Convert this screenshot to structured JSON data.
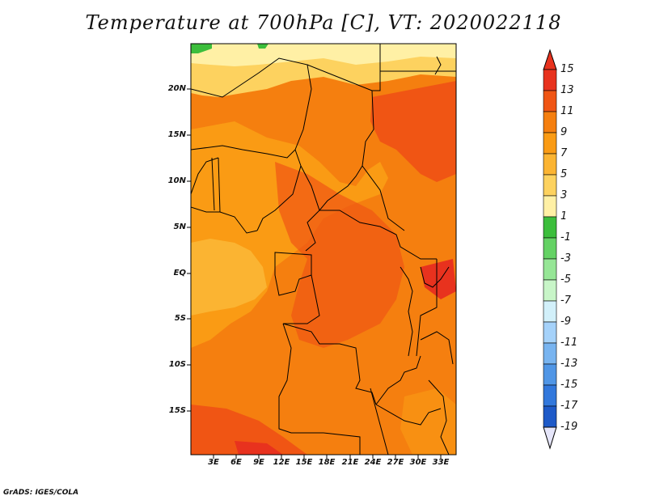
{
  "title": "Temperature at 700hPa [C], VT: 2020022118",
  "credit": "GrADS: IGES/COLA",
  "map": {
    "lat_ticks": [
      "20N",
      "15N",
      "10N",
      "5N",
      "EQ",
      "5S",
      "10S",
      "15S"
    ],
    "lon_ticks": [
      "3E",
      "6E",
      "9E",
      "12E",
      "15E",
      "18E",
      "21E",
      "24E",
      "27E",
      "30E",
      "33E"
    ]
  },
  "colorbar": {
    "labels": [
      "15",
      "13",
      "11",
      "9",
      "7",
      "5",
      "3",
      "1",
      "-1",
      "-3",
      "-5",
      "-7",
      "-9",
      "-11",
      "-13",
      "-15",
      "-17",
      "-19"
    ],
    "colors": [
      "#e8321e",
      "#f05514",
      "#f57f0f",
      "#fa9b14",
      "#fbb432",
      "#fdd25f",
      "#fff0a5",
      "#3cbe3c",
      "#64d264",
      "#96e696",
      "#c8f5c8",
      "#d2f0fa",
      "#a5d2fa",
      "#78b4f0",
      "#5096e6",
      "#3278dc",
      "#1e5ac8",
      "#0f3cb4",
      "#0a1e78",
      "#e6e6fa"
    ]
  },
  "colors": {
    "field_base": "#f57f0f",
    "warm_cap": "#f05514",
    "cool_north": "#fdd25f",
    "green": "#3cbe3c",
    "border": "#000000"
  }
}
